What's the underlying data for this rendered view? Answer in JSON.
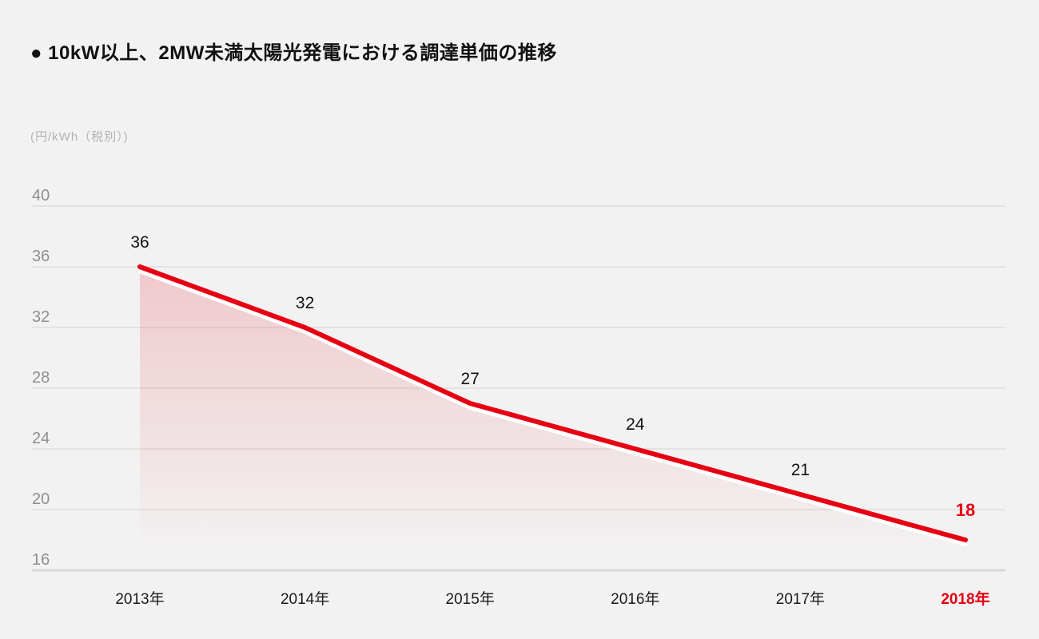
{
  "page": {
    "background": "#f2f2f2"
  },
  "header": {
    "title": "● 10kW以上、2MW未満太陽光発電における調達単価の推移"
  },
  "chart_data": {
    "type": "line",
    "title": "10kW以上、2MW未満太陽光発電における調達単価の推移",
    "unit_label": "(円/kWh（税別）)",
    "categories": [
      "2013年",
      "2014年",
      "2015年",
      "2016年",
      "2017年",
      "2018年"
    ],
    "series": [
      {
        "name": "調達単価",
        "values": [
          36,
          32,
          27,
          24,
          21,
          18
        ]
      }
    ],
    "data_labels": [
      "36",
      "32",
      "27",
      "24",
      "21",
      "18"
    ],
    "ylim": [
      16,
      40
    ],
    "yticks": [
      40,
      36,
      32,
      28,
      24,
      20,
      16
    ],
    "ytick_step": 4,
    "grid": true,
    "legend": false,
    "highlight_last_index": 5,
    "colors": {
      "line": "#e60012",
      "area_fill_top": "#e60012",
      "grid": "#e3e3e3",
      "baseline": "#d8d8d8",
      "y_tick_text": "#8f8f8f",
      "value_label_text": "#111111",
      "x_tick_text": "#1a1a1a",
      "highlight": "#e60012",
      "unit_text": "#b7b1b1",
      "background": "#f2f2f2"
    }
  }
}
